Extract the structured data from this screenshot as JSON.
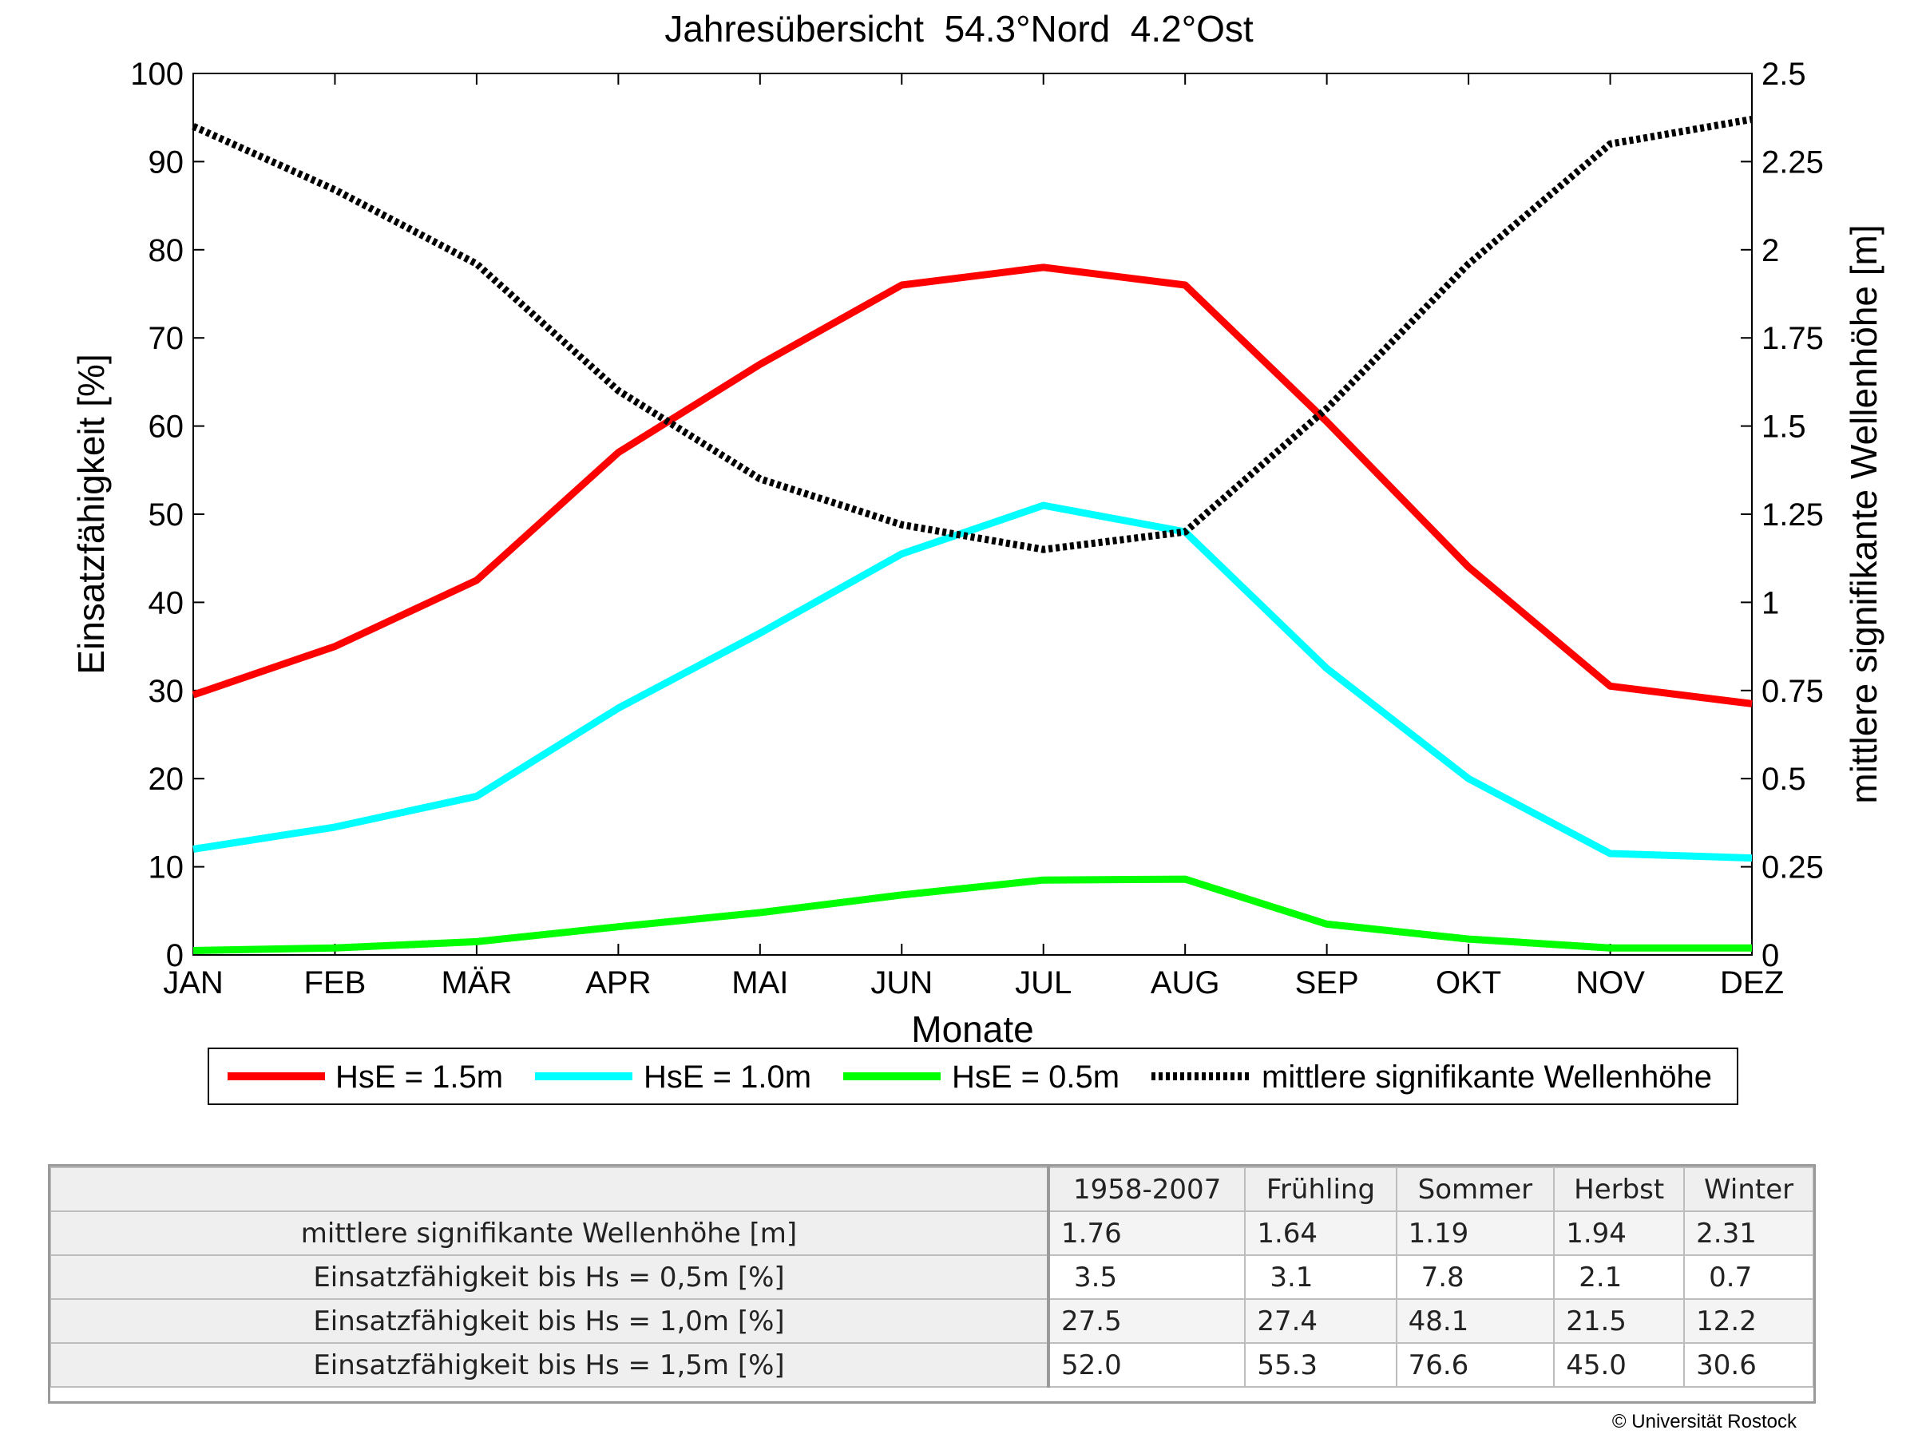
{
  "chart_data": {
    "type": "line",
    "title": "Jahresübersicht  54.3°Nord  4.2°Ost",
    "xlabel": "Monate",
    "ylabel": "Einsatzfähigkeit [%]",
    "y2label": "mittlere signifikante Wellenhöhe [m]",
    "categories": [
      "JAN",
      "FEB",
      "MÄR",
      "APR",
      "MAI",
      "JUN",
      "JUL",
      "AUG",
      "SEP",
      "OKT",
      "NOV",
      "DEZ"
    ],
    "ylim": [
      0,
      100
    ],
    "yticks": [
      "0",
      "10",
      "20",
      "30",
      "40",
      "50",
      "60",
      "70",
      "80",
      "90",
      "100"
    ],
    "y2lim": [
      0,
      2.5
    ],
    "y2ticks": [
      "0",
      "0.25",
      "0.5",
      "0.75",
      "1",
      "1.25",
      "1.5",
      "1.75",
      "2",
      "2.25",
      "2.5"
    ],
    "grid": false,
    "legend_position": "bottom",
    "series": [
      {
        "name": "HsE = 1.5m",
        "axis": "left",
        "color": "#ff0000",
        "style": "solid",
        "values": [
          29.5,
          35,
          42.5,
          57,
          67,
          76,
          78,
          76,
          60.5,
          44,
          30.5,
          28.5
        ]
      },
      {
        "name": "HsE = 1.0m",
        "axis": "left",
        "color": "#00ffff",
        "style": "solid",
        "values": [
          12,
          14.5,
          18,
          28,
          36.5,
          45.5,
          51,
          48,
          32.5,
          20,
          11.5,
          11
        ]
      },
      {
        "name": "HsE = 0.5m",
        "axis": "left",
        "color": "#00ff00",
        "style": "solid",
        "values": [
          0.5,
          0.8,
          1.5,
          3.2,
          4.8,
          6.8,
          8.5,
          8.6,
          3.5,
          1.8,
          0.8,
          0.8
        ]
      },
      {
        "name": "mittlere signifikante Wellenhöhe",
        "axis": "right",
        "color": "#000000",
        "style": "dotted",
        "values": [
          2.35,
          2.17,
          1.96,
          1.6,
          1.35,
          1.22,
          1.15,
          1.2,
          1.55,
          1.96,
          2.3,
          2.37
        ]
      }
    ]
  },
  "table": {
    "columns": [
      "1958-2007",
      "Frühling",
      "Sommer",
      "Herbst",
      "Winter"
    ],
    "rows": [
      {
        "label": "mittlere signifikante Wellenhöhe [m]",
        "values": [
          "1.76",
          "1.64",
          "1.19",
          "1.94",
          "2.31"
        ]
      },
      {
        "label": "Einsatzfähigkeit bis Hs = 0,5m [%]",
        "values": [
          "3.5",
          "3.1",
          "7.8",
          "2.1",
          "0.7"
        ]
      },
      {
        "label": "Einsatzfähigkeit bis Hs = 1,0m [%]",
        "values": [
          "27.5",
          "27.4",
          "48.1",
          "21.5",
          "12.2"
        ]
      },
      {
        "label": "Einsatzfähigkeit bis Hs = 1,5m [%]",
        "values": [
          "52.0",
          "55.3",
          "76.6",
          "45.0",
          "30.6"
        ]
      }
    ]
  },
  "credit": "© Universität Rostock"
}
